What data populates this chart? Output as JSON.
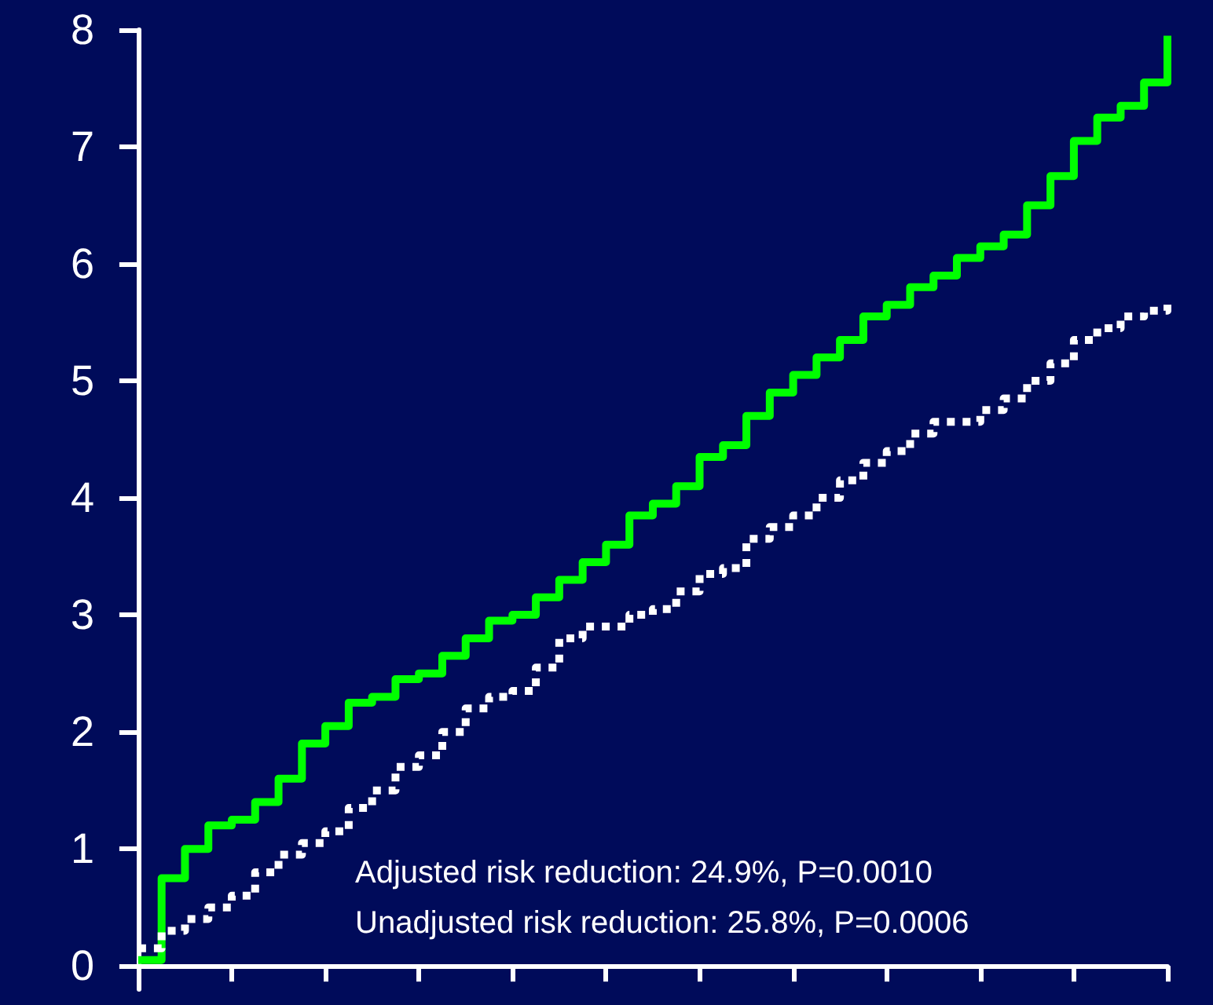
{
  "chart_data": {
    "type": "step",
    "categories": [
      null,
      null,
      null,
      null,
      null,
      null,
      null,
      null,
      null,
      null,
      null,
      null,
      null,
      null,
      null,
      null,
      null,
      null,
      null,
      null,
      null,
      null,
      null,
      null,
      null,
      null,
      null,
      null,
      null,
      null,
      null,
      null,
      null,
      null,
      null,
      null,
      null,
      null,
      null,
      null,
      null,
      null,
      null,
      null,
      null
    ],
    "series": [
      {
        "color": "#00ff00",
        "line_style": "solid",
        "values": [
          0.05,
          0.75,
          1.0,
          1.2,
          1.25,
          1.4,
          1.6,
          1.9,
          2.05,
          2.25,
          2.3,
          2.45,
          2.5,
          2.65,
          2.8,
          2.95,
          3.0,
          3.15,
          3.3,
          3.45,
          3.6,
          3.85,
          3.95,
          4.1,
          4.35,
          4.45,
          4.7,
          4.9,
          5.05,
          5.2,
          5.35,
          5.55,
          5.65,
          5.8,
          5.9,
          6.05,
          6.15,
          6.25,
          6.5,
          6.75,
          7.05,
          7.25,
          7.35,
          7.55,
          7.95
        ]
      },
      {
        "color": "#ffffff",
        "line_style": "dotted",
        "values": [
          0.15,
          0.3,
          0.4,
          0.5,
          0.6,
          0.8,
          0.95,
          1.05,
          1.15,
          1.35,
          1.5,
          1.7,
          1.8,
          2.0,
          2.2,
          2.3,
          2.35,
          2.55,
          2.8,
          2.9,
          2.9,
          3.0,
          3.05,
          3.2,
          3.35,
          3.4,
          3.65,
          3.75,
          3.85,
          4.0,
          4.15,
          4.3,
          4.4,
          4.55,
          4.65,
          4.65,
          4.75,
          4.85,
          5.0,
          5.15,
          5.35,
          5.45,
          5.55,
          5.6,
          5.7
        ]
      }
    ],
    "ylim": [
      -0.2,
      8
    ],
    "yticks": [
      0,
      1,
      2,
      3,
      4,
      5,
      6,
      7,
      8
    ],
    "tick_labels": "y",
    "marker": "none",
    "annotations": [
      "Adjusted risk reduction: 24.9%, P=0.0010",
      "Unadjusted risk reduction: 25.8%, P=0.0006"
    ]
  }
}
